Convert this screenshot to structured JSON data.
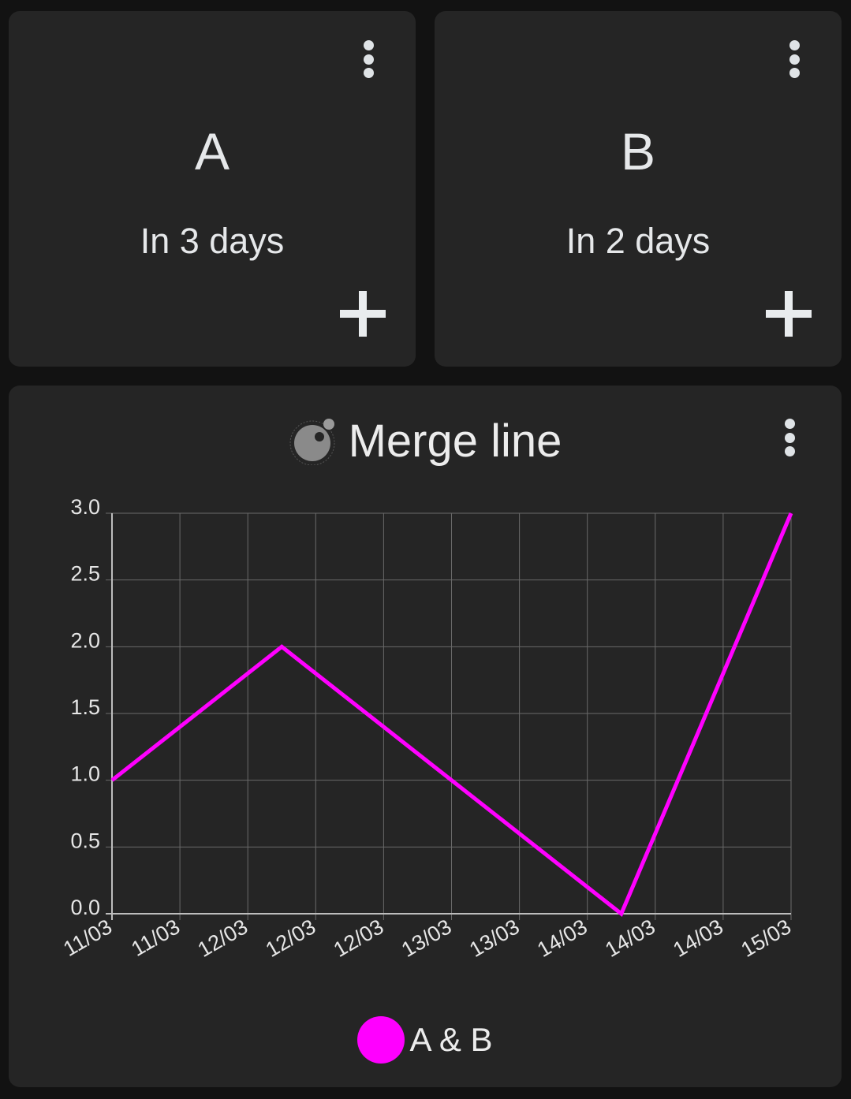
{
  "counters": [
    {
      "title": "A",
      "subtitle": "In 3 days",
      "menu_icon": "more-vertical-icon",
      "add_icon": "plus-icon"
    },
    {
      "title": "B",
      "subtitle": "In 2 days",
      "menu_icon": "more-vertical-icon",
      "add_icon": "plus-icon"
    }
  ],
  "chart_card": {
    "title": "Merge line",
    "logo_icon": "app-logo-icon",
    "menu_icon": "more-vertical-icon"
  },
  "chart_data": {
    "type": "line",
    "title": "Merge line",
    "xlabel": "",
    "ylabel": "",
    "x_tick_labels": [
      "11/03",
      "11/03",
      "12/03",
      "12/03",
      "12/03",
      "13/03",
      "13/03",
      "14/03",
      "14/03",
      "14/03",
      "15/03"
    ],
    "y_tick_labels": [
      "0.0",
      "0.5",
      "1.0",
      "1.5",
      "2.0",
      "2.5",
      "3.0"
    ],
    "ylim": [
      0,
      3
    ],
    "xlim": [
      0,
      10
    ],
    "grid": true,
    "legend_position": "bottom",
    "series": [
      {
        "name": "A & B",
        "color": "#ff00ff",
        "points": [
          {
            "x": 0,
            "y": 1
          },
          {
            "x": 2.5,
            "y": 2
          },
          {
            "x": 7.5,
            "y": 0
          },
          {
            "x": 10,
            "y": 3
          }
        ]
      }
    ]
  },
  "colors": {
    "background": "#121212",
    "card": "#252525",
    "grid": "#6a6a6a",
    "series": "#ff00ff"
  }
}
